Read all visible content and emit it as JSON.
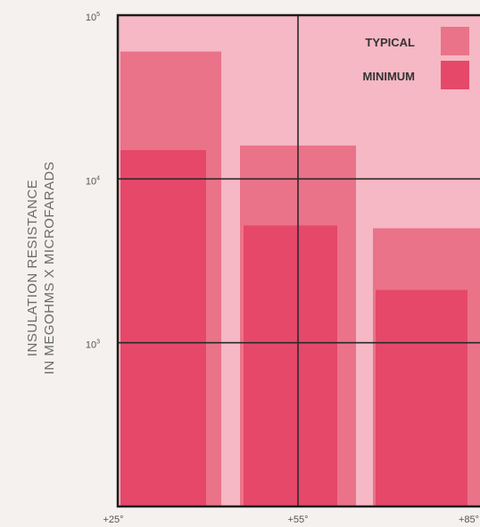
{
  "chart_data": {
    "type": "bar",
    "title": "",
    "categories": [
      "+25°",
      "+55°",
      "+85°"
    ],
    "y_scale": "log",
    "ylim": [
      100,
      100000
    ],
    "y_ticks": [
      {
        "value": 100000,
        "base": "10",
        "exp": "5"
      },
      {
        "value": 10000,
        "base": "10",
        "exp": "4"
      },
      {
        "value": 1000,
        "base": "10",
        "exp": "3"
      }
    ],
    "ylabel_lines": [
      "INSULATION  RESISTANCE",
      "IN MEGOHMS  X  MICROFARADS"
    ],
    "series": [
      {
        "name": "TYPICAL",
        "color": "#ea7389",
        "values": [
          60000,
          16000,
          5000
        ]
      },
      {
        "name": "MINIMUM",
        "color": "#e6486a",
        "values": [
          15000,
          5200,
          2100
        ]
      }
    ],
    "grid": true,
    "legend_position": "top-right",
    "colors": {
      "plot_background": "#f5b8c4",
      "border": "#1d1d1d",
      "page_background": "#f4f1ef"
    }
  }
}
